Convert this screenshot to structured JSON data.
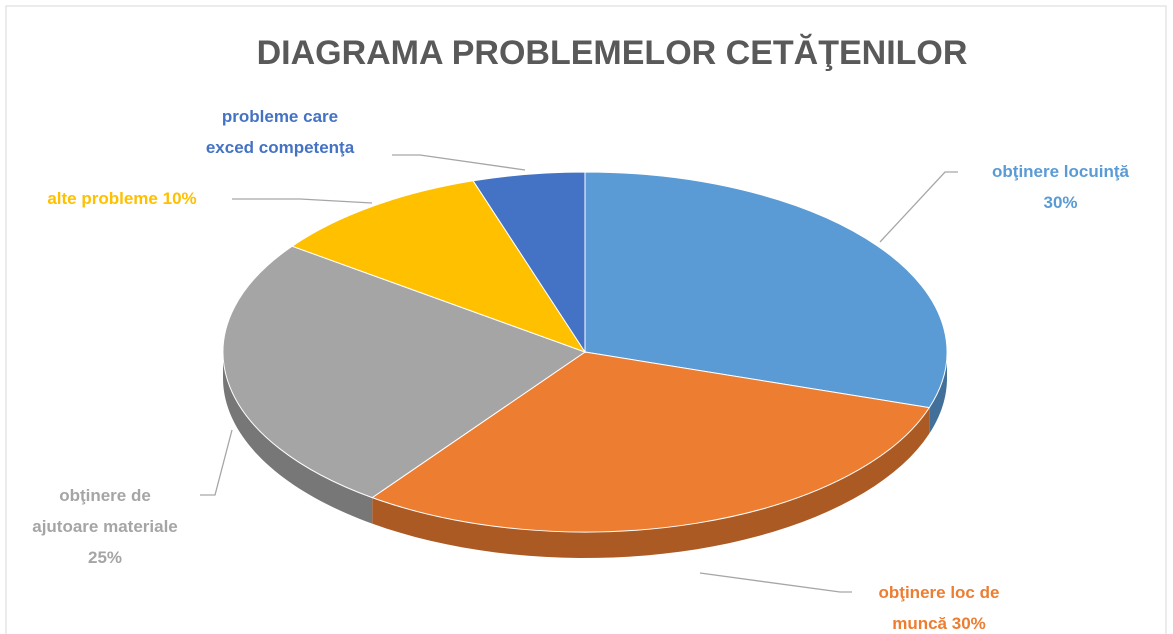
{
  "chart_data": {
    "type": "pie3d",
    "title": "DIAGRAMA PROBLEMELOR CETĂŢENILOR",
    "categories": [
      "obţinere locuinţă",
      "obţinere loc de muncă",
      "obţinere de ajutoare materiale",
      "alte probleme",
      "probleme care exced competenţa"
    ],
    "values": [
      30,
      30,
      25,
      10,
      5
    ],
    "value_labels": [
      "30%",
      "30%",
      "25%",
      "10%",
      null
    ],
    "colors": [
      "#5b9bd5",
      "#ed7d31",
      "#a5a5a5",
      "#ffc000",
      "#4472c4"
    ]
  }
}
